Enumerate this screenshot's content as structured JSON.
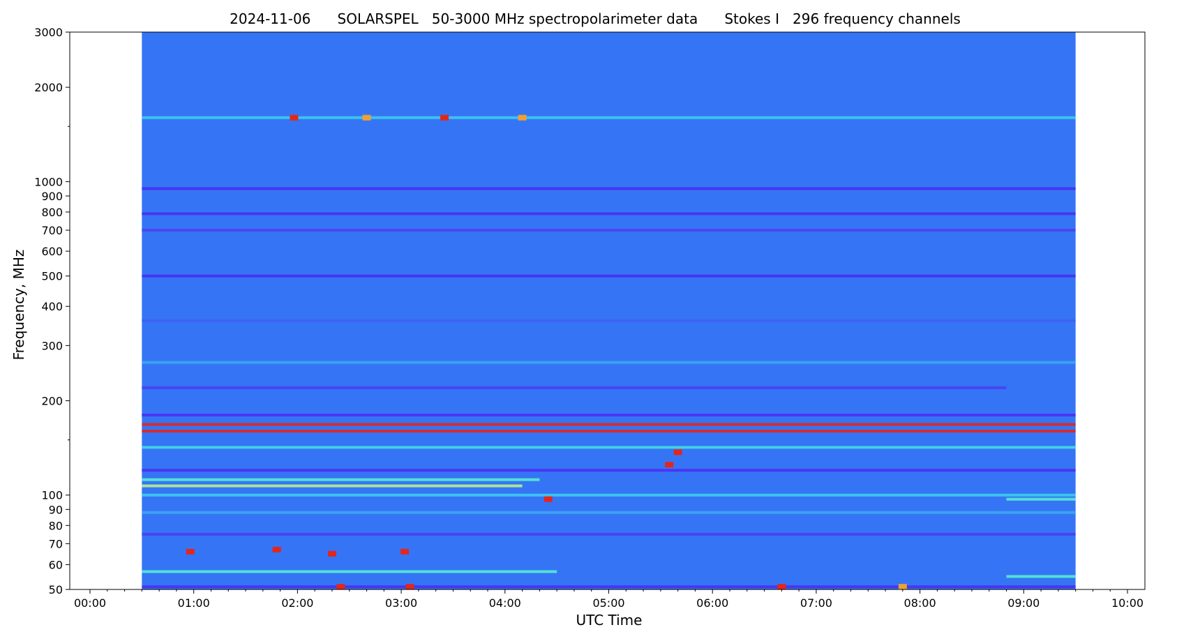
{
  "chart_data": {
    "type": "heatmap",
    "title": "2024-11-06      SOLARSPEL   50-3000 MHz spectropolarimeter data      Stokes I   296 frequency channels",
    "xlabel": "UTC Time",
    "ylabel": "Frequency, MHz",
    "x_axis": {
      "scale": "time",
      "range": [
        "00:00",
        "10:00"
      ],
      "tick_labels": [
        "00:00",
        "01:00",
        "02:00",
        "03:00",
        "04:00",
        "05:00",
        "06:00",
        "07:00",
        "08:00",
        "09:00",
        "10:00"
      ]
    },
    "y_axis": {
      "scale": "log",
      "range": [
        50,
        3000
      ],
      "tick_values": [
        50,
        60,
        70,
        80,
        90,
        100,
        200,
        300,
        400,
        500,
        600,
        700,
        800,
        900,
        1000,
        2000,
        3000
      ],
      "tick_labels": [
        "50",
        "60",
        "70",
        "80",
        "90",
        "100",
        "200",
        "300",
        "400",
        "500",
        "600",
        "700",
        "800",
        "900",
        "1000",
        "2000",
        "3000"
      ]
    },
    "data_coverage": {
      "start": "00:30",
      "end": "09:30"
    },
    "colormap": "jet",
    "background_color": "#3575f5",
    "frequency_bands": [
      {
        "freq": 1600,
        "start": "00:30",
        "end": "09:30",
        "color": "#3ecbf0"
      },
      {
        "freq": 950,
        "start": "00:30",
        "end": "09:30",
        "color": "#4a2ff2"
      },
      {
        "freq": 790,
        "start": "00:30",
        "end": "09:30",
        "color": "#4a2ff2"
      },
      {
        "freq": 700,
        "start": "00:30",
        "end": "09:30",
        "color": "#4e43f2"
      },
      {
        "freq": 500,
        "start": "00:30",
        "end": "09:30",
        "color": "#4a2ff2"
      },
      {
        "freq": 360,
        "start": "00:30",
        "end": "09:30",
        "color": "#3f62f3"
      },
      {
        "freq": 265,
        "start": "00:30",
        "end": "09:30",
        "color": "#3aa8f0"
      },
      {
        "freq": 220,
        "start": "00:30",
        "end": "08:50",
        "color": "#4a3ff2"
      },
      {
        "freq": 180,
        "start": "00:30",
        "end": "09:30",
        "color": "#4e2ff2"
      },
      {
        "freq": 168,
        "start": "00:30",
        "end": "09:30",
        "color": "#e3261c"
      },
      {
        "freq": 160,
        "start": "00:30",
        "end": "09:30",
        "color": "#e3261c"
      },
      {
        "freq": 142,
        "start": "00:30",
        "end": "09:30",
        "color": "#46d8e6"
      },
      {
        "freq": 120,
        "start": "00:30",
        "end": "09:30",
        "color": "#4e2ff2"
      },
      {
        "freq": 112,
        "start": "00:30",
        "end": "04:20",
        "color": "#56ecd0"
      },
      {
        "freq": 107,
        "start": "00:30",
        "end": "04:10",
        "color": "#b8f090"
      },
      {
        "freq": 100,
        "start": "00:30",
        "end": "09:30",
        "color": "#3ecbf0"
      },
      {
        "freq": 97,
        "start": "08:50",
        "end": "09:30",
        "color": "#56ecd0"
      },
      {
        "freq": 88,
        "start": "00:30",
        "end": "09:30",
        "color": "#3aa8f0"
      },
      {
        "freq": 75,
        "start": "00:30",
        "end": "09:30",
        "color": "#4a3ff2"
      },
      {
        "freq": 57,
        "start": "00:30",
        "end": "04:30",
        "color": "#56ecd0"
      },
      {
        "freq": 55,
        "start": "08:50",
        "end": "09:30",
        "color": "#56ecd0"
      },
      {
        "freq": 51,
        "start": "00:30",
        "end": "09:30",
        "color": "#4a2ff2"
      }
    ],
    "bursts": [
      {
        "time": "01:58",
        "freq": 1600,
        "color": "#e3261c"
      },
      {
        "time": "02:40",
        "freq": 1600,
        "color": "#f0a030"
      },
      {
        "time": "03:25",
        "freq": 1600,
        "color": "#e3261c"
      },
      {
        "time": "04:10",
        "freq": 1600,
        "color": "#f0a030"
      },
      {
        "time": "04:25",
        "freq": 97,
        "color": "#e3261c"
      },
      {
        "time": "05:35",
        "freq": 125,
        "color": "#e3261c"
      },
      {
        "time": "05:40",
        "freq": 137,
        "color": "#e3261c"
      },
      {
        "time": "00:58",
        "freq": 66,
        "color": "#e3261c"
      },
      {
        "time": "01:48",
        "freq": 67,
        "color": "#e3261c"
      },
      {
        "time": "02:20",
        "freq": 65,
        "color": "#e3261c"
      },
      {
        "time": "03:02",
        "freq": 66,
        "color": "#e3261c"
      },
      {
        "time": "02:25",
        "freq": 51,
        "color": "#e3261c"
      },
      {
        "time": "03:05",
        "freq": 51,
        "color": "#e3261c"
      },
      {
        "time": "06:40",
        "freq": 51,
        "color": "#e3261c"
      },
      {
        "time": "07:50",
        "freq": 51,
        "color": "#f0a030"
      }
    ]
  }
}
